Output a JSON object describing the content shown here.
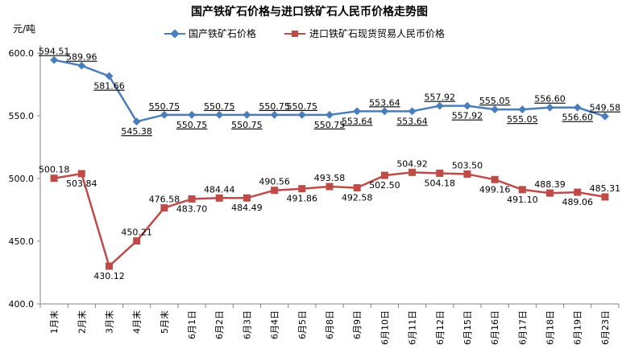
{
  "chart_data": {
    "type": "line",
    "title": "国产铁矿石价格与进口铁矿石人民币价格走势图",
    "ylabel": "元/吨",
    "ylim": [
      400,
      600
    ],
    "yticks": [
      "400.0",
      "450.0",
      "500.0",
      "550.0",
      "600.0"
    ],
    "ytick_values": [
      400,
      450,
      500,
      550,
      600
    ],
    "grid": false,
    "legend_position": "top",
    "categories": [
      "1月末",
      "2月末",
      "3月末",
      "4月末",
      "5月末",
      "6月1日",
      "6月2日",
      "6月3日",
      "6月4日",
      "6月5日",
      "6月8日",
      "6月9日",
      "6月10日",
      "6月11日",
      "6月12日",
      "6月15日",
      "6月16日",
      "6月17日",
      "6月18日",
      "6月19日",
      "6月23日"
    ],
    "series": [
      {
        "name": "国产铁矿石价格",
        "color": "#4A7EBB",
        "marker": "diamond",
        "values": [
          594.51,
          589.96,
          581.66,
          545.38,
          550.75,
          550.75,
          550.75,
          550.75,
          550.75,
          550.75,
          550.75,
          553.64,
          553.64,
          553.64,
          557.92,
          557.92,
          555.05,
          555.05,
          556.6,
          556.6,
          549.58
        ],
        "labels": [
          "594.51",
          "589.96",
          "581.66",
          "545.38",
          "550.75",
          "550.75",
          "550.75",
          "550.75",
          "550.75",
          "550.75",
          "550.75",
          "553.64",
          "553.64",
          "553.64",
          "557.92",
          "557.92",
          "555.05",
          "555.05",
          "556.60",
          "556.60",
          "549.58"
        ],
        "label_pos": [
          "above",
          "above",
          "below",
          "below",
          "above",
          "below",
          "above",
          "below",
          "above",
          "above",
          "below",
          "below",
          "above",
          "below",
          "above",
          "below",
          "above",
          "below",
          "above",
          "below",
          "above"
        ]
      },
      {
        "name": "进口铁矿石现货贸易人民币价格",
        "color": "#BE4B48",
        "marker": "square",
        "values": [
          500.18,
          503.84,
          430.12,
          450.21,
          476.58,
          483.7,
          484.44,
          484.49,
          490.56,
          491.86,
          493.58,
          492.58,
          502.5,
          504.92,
          504.18,
          503.5,
          499.16,
          491.1,
          488.39,
          489.06,
          485.31
        ],
        "labels": [
          "500.18",
          "503.84",
          "430.12",
          "450.21",
          "476.58",
          "483.70",
          "484.44",
          "484.49",
          "490.56",
          "491.86",
          "493.58",
          "492.58",
          "502.50",
          "504.92",
          "504.18",
          "503.50",
          "499.16",
          "491.10",
          "488.39",
          "489.06",
          "485.31"
        ],
        "label_pos": [
          "above",
          "below",
          "below",
          "above",
          "above",
          "below",
          "above",
          "below",
          "above",
          "below",
          "above",
          "below",
          "below",
          "above",
          "below",
          "above",
          "below",
          "below",
          "above",
          "below",
          "above"
        ]
      }
    ]
  }
}
